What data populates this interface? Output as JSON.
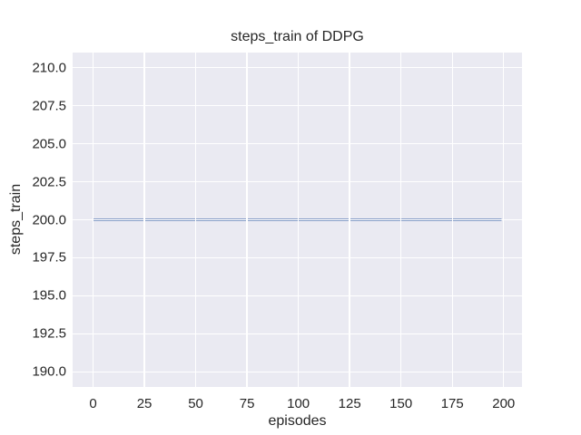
{
  "chart_data": {
    "type": "line",
    "title": "steps_train of DDPG",
    "xlabel": "episodes",
    "ylabel": "steps_train",
    "x_tick_labels": [
      "0",
      "25",
      "50",
      "75",
      "100",
      "125",
      "150",
      "175",
      "200"
    ],
    "y_tick_labels": [
      "190.0",
      "192.5",
      "195.0",
      "197.5",
      "200.0",
      "202.5",
      "205.0",
      "207.5",
      "210.0"
    ],
    "xlim": [
      -9.95,
      208.95
    ],
    "ylim": [
      189,
      211
    ],
    "grid": true,
    "legend": false,
    "series": [
      {
        "name": "steps_train",
        "color": "#4c72b0",
        "x": [
          0,
          199
        ],
        "y": [
          200,
          200
        ]
      }
    ],
    "colors": {
      "figure_background": "#ffffff",
      "plot_background": "#eaeaf2",
      "gridline": "#ffffff",
      "text": "#262626",
      "line": "#4c72b0"
    }
  }
}
